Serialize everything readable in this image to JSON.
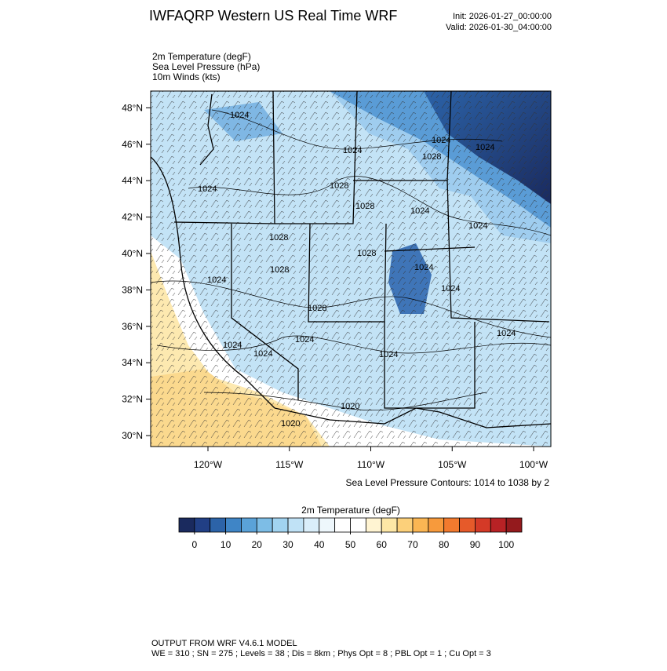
{
  "header": {
    "title": "IWFAQRP Western US Real Time WRF",
    "init": "Init: 2026-01-27_00:00:00",
    "valid": "Valid: 2026-01-30_04:00:00"
  },
  "fields": [
    "2m Temperature   (degF)",
    "Sea Level Pressure   (hPa)",
    "10m Winds   (kts)"
  ],
  "map": {
    "latticks": [
      {
        "value": 30,
        "label": "30°N"
      },
      {
        "value": 32,
        "label": "32°N"
      },
      {
        "value": 34,
        "label": "34°N"
      },
      {
        "value": 36,
        "label": "36°N"
      },
      {
        "value": 38,
        "label": "38°N"
      },
      {
        "value": 40,
        "label": "40°N"
      },
      {
        "value": 42,
        "label": "42°N"
      },
      {
        "value": 44,
        "label": "44°N"
      },
      {
        "value": 46,
        "label": "46°N"
      },
      {
        "value": 48,
        "label": "48°N"
      }
    ],
    "lonticks": [
      {
        "value": -120,
        "label": "120°W"
      },
      {
        "value": -115,
        "label": "115°W"
      },
      {
        "value": -110,
        "label": "110°W"
      },
      {
        "value": -105,
        "label": "105°W"
      },
      {
        "value": -100,
        "label": "100°W"
      }
    ],
    "contour_note": "Sea Level Pressure Contours: 1014 to 1038 by 2",
    "contour_labels": [
      "1024",
      "1024",
      "1024",
      "1028",
      "1024",
      "1028",
      "1024",
      "1024",
      "1028",
      "1028",
      "1028",
      "1024",
      "1028",
      "1024",
      "1024",
      "1024",
      "1024",
      "1024",
      "1020",
      "1020",
      "1024",
      "1024",
      "1028",
      "1024"
    ]
  },
  "colorbar": {
    "title": "2m Temperature  (degF)",
    "range": [
      -5,
      105
    ],
    "colors": [
      "#1a2a5e",
      "#213f85",
      "#2c63a8",
      "#3f85c6",
      "#5aa2d8",
      "#7dbde6",
      "#a1d3f0",
      "#c0e2f6",
      "#daeefa",
      "#eef7fc",
      "#ffffff",
      "#ffffff",
      "#fff4d2",
      "#fde7a6",
      "#fcd07a",
      "#fbb653",
      "#f79a3c",
      "#f27a2e",
      "#e65a2a",
      "#d43a27",
      "#b82225",
      "#941a1d"
    ],
    "ticks": [
      0,
      10,
      20,
      30,
      40,
      50,
      60,
      70,
      80,
      90,
      100
    ]
  },
  "footer": {
    "line1": "OUTPUT FROM WRF V4.6.1 MODEL",
    "line2": "WE = 310 ; SN = 275 ; Levels = 38 ; Dis = 8km ; Phys Opt = 8 ; PBL Opt = 1 ; Cu Opt = 3"
  }
}
